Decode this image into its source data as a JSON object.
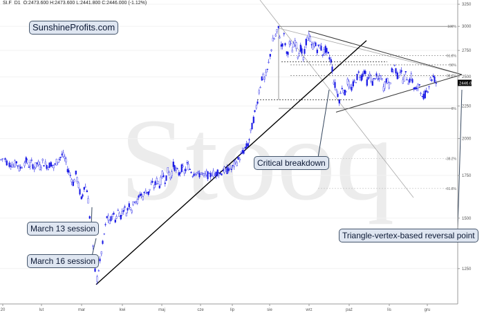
{
  "header": {
    "symbol": "SI.F",
    "interval": "D1",
    "quote": "O:2473.600  H:2473.600  L:2441.800  C:2446.000  (-1.12%)"
  },
  "watermark": "Stooq",
  "brand": "SunshineProfits.com",
  "annotations": {
    "march13": "March 13 session",
    "march16": "March 16 session",
    "critical": "Critical breakdown",
    "vertex": "Triangle-vertex-based reversal point"
  },
  "colors": {
    "candle": "#1a1ae6",
    "trend": "#000000",
    "guide": "#a8a8a8",
    "callout_bg": "#dfe6f1",
    "price_tag": "#000000"
  },
  "chart_data": {
    "type": "candlestick",
    "title": "",
    "xlabel": "",
    "ylabel": "",
    "y_scale": "log",
    "ylim": [
      1100,
      3300
    ],
    "y_ticks": [
      1250,
      1500,
      1750,
      2000,
      2250,
      2500,
      2750,
      3000,
      3250
    ],
    "x_tick_labels": [
      "20",
      "lut",
      "mar",
      "kwi",
      "maj",
      "cze",
      "lip",
      "sie",
      "wrz",
      "paź",
      "lis",
      "gru"
    ],
    "current_price": "2446.00",
    "fib_levels": [
      {
        "label": "100%",
        "value": 3000
      },
      {
        "label": "61.8%",
        "value": 2700
      },
      {
        "label": "50%",
        "value": 2610
      },
      {
        "label": "38.2%",
        "value": 2510
      },
      {
        "label": "0%",
        "value": 2230
      },
      {
        "label": "-38.2%",
        "value": 1860
      },
      {
        "label": "-61.8%",
        "value": 1670
      }
    ],
    "close_path": [
      [
        0,
        1845
      ],
      [
        6,
        1870
      ],
      [
        12,
        1820
      ],
      [
        16,
        1830
      ],
      [
        20,
        1810
      ],
      [
        24,
        1840
      ],
      [
        28,
        1790
      ],
      [
        34,
        1830
      ],
      [
        38,
        1845
      ],
      [
        42,
        1815
      ],
      [
        46,
        1830
      ],
      [
        50,
        1800
      ],
      [
        54,
        1830
      ],
      [
        58,
        1805
      ],
      [
        62,
        1840
      ],
      [
        66,
        1820
      ],
      [
        70,
        1810
      ],
      [
        74,
        1830
      ],
      [
        78,
        1800
      ],
      [
        82,
        1840
      ],
      [
        86,
        1860
      ],
      [
        90,
        1885
      ],
      [
        94,
        1860
      ],
      [
        98,
        1790
      ],
      [
        102,
        1750
      ],
      [
        106,
        1700
      ],
      [
        110,
        1760
      ],
      [
        114,
        1680
      ],
      [
        118,
        1600
      ],
      [
        122,
        1690
      ],
      [
        126,
        1660
      ],
      [
        130,
        1500
      ],
      [
        133,
        1380
      ],
      [
        136,
        1300
      ],
      [
        139,
        1180
      ],
      [
        143,
        1250
      ],
      [
        147,
        1330
      ],
      [
        151,
        1420
      ],
      [
        155,
        1510
      ],
      [
        159,
        1470
      ],
      [
        163,
        1530
      ],
      [
        167,
        1490
      ],
      [
        171,
        1540
      ],
      [
        175,
        1510
      ],
      [
        179,
        1560
      ],
      [
        183,
        1530
      ],
      [
        187,
        1580
      ],
      [
        191,
        1550
      ],
      [
        195,
        1610
      ],
      [
        199,
        1590
      ],
      [
        203,
        1640
      ],
      [
        207,
        1620
      ],
      [
        211,
        1660
      ],
      [
        215,
        1640
      ],
      [
        219,
        1700
      ],
      [
        223,
        1680
      ],
      [
        227,
        1720
      ],
      [
        231,
        1690
      ],
      [
        235,
        1760
      ],
      [
        239,
        1720
      ],
      [
        243,
        1780
      ],
      [
        247,
        1740
      ],
      [
        251,
        1820
      ],
      [
        255,
        1780
      ],
      [
        259,
        1760
      ],
      [
        263,
        1800
      ],
      [
        267,
        1770
      ],
      [
        271,
        1820
      ],
      [
        275,
        1790
      ],
      [
        279,
        1760
      ],
      [
        283,
        1780
      ],
      [
        287,
        1750
      ],
      [
        291,
        1770
      ],
      [
        295,
        1740
      ],
      [
        299,
        1760
      ],
      [
        303,
        1740
      ],
      [
        307,
        1770
      ],
      [
        311,
        1750
      ],
      [
        315,
        1780
      ],
      [
        319,
        1760
      ],
      [
        323,
        1790
      ],
      [
        327,
        1770
      ],
      [
        331,
        1800
      ],
      [
        335,
        1790
      ],
      [
        339,
        1820
      ],
      [
        343,
        1840
      ],
      [
        347,
        1870
      ],
      [
        351,
        1900
      ],
      [
        355,
        1930
      ],
      [
        359,
        1960
      ],
      [
        363,
        2050
      ],
      [
        367,
        2150
      ],
      [
        371,
        2250
      ],
      [
        375,
        2380
      ],
      [
        379,
        2500
      ],
      [
        383,
        2480
      ],
      [
        387,
        2560
      ],
      [
        391,
        2720
      ],
      [
        395,
        2850
      ],
      [
        399,
        2900
      ],
      [
        403,
        2980
      ],
      [
        407,
        2780
      ],
      [
        411,
        2900
      ],
      [
        415,
        2700
      ],
      [
        419,
        2820
      ],
      [
        423,
        2750
      ],
      [
        427,
        2850
      ],
      [
        431,
        2700
      ],
      [
        435,
        2780
      ],
      [
        439,
        2650
      ],
      [
        443,
        2850
      ],
      [
        447,
        2900
      ],
      [
        451,
        2780
      ],
      [
        455,
        2820
      ],
      [
        459,
        2760
      ],
      [
        463,
        2800
      ],
      [
        467,
        2720
      ],
      [
        471,
        2760
      ],
      [
        475,
        2700
      ],
      [
        479,
        2650
      ],
      [
        483,
        2450
      ],
      [
        487,
        2380
      ],
      [
        491,
        2300
      ],
      [
        495,
        2420
      ],
      [
        499,
        2350
      ],
      [
        503,
        2460
      ],
      [
        507,
        2380
      ],
      [
        511,
        2430
      ],
      [
        515,
        2480
      ],
      [
        519,
        2530
      ],
      [
        523,
        2500
      ],
      [
        527,
        2560
      ],
      [
        531,
        2450
      ],
      [
        535,
        2520
      ],
      [
        539,
        2440
      ],
      [
        543,
        2510
      ],
      [
        547,
        2470
      ],
      [
        551,
        2500
      ],
      [
        555,
        2400
      ],
      [
        559,
        2480
      ],
      [
        563,
        2420
      ],
      [
        567,
        2550
      ],
      [
        571,
        2600
      ],
      [
        575,
        2500
      ],
      [
        579,
        2560
      ],
      [
        583,
        2470
      ],
      [
        587,
        2520
      ],
      [
        591,
        2460
      ],
      [
        595,
        2500
      ],
      [
        599,
        2400
      ],
      [
        603,
        2380
      ],
      [
        607,
        2440
      ],
      [
        611,
        2300
      ],
      [
        615,
        2350
      ],
      [
        619,
        2400
      ],
      [
        623,
        2480
      ],
      [
        627,
        2500
      ],
      [
        631,
        2446
      ]
    ]
  }
}
